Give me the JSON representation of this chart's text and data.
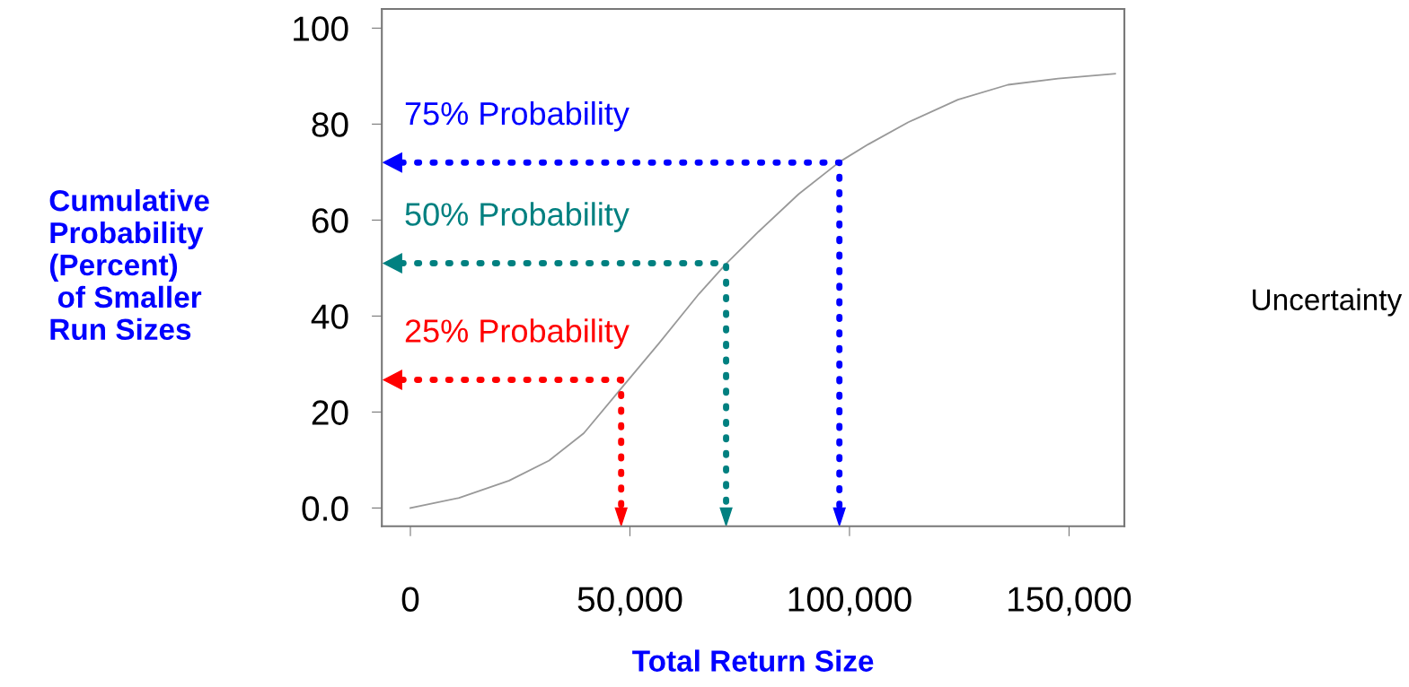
{
  "chart_data": {
    "type": "line",
    "xlabel": "Total Return Size",
    "ylabel": "Cumulative\nProbability\n(Percent)\n of Smaller\nRun Sizes",
    "x": [
      0,
      11100,
      22500,
      31600,
      39500,
      48000,
      56600,
      65700,
      71900,
      79300,
      88400,
      97700,
      104300,
      113400,
      124700,
      136100,
      147500,
      160500
    ],
    "series": [
      {
        "color": "#999999",
        "values": [
          0,
          2.1,
          5.7,
          9.9,
          15.6,
          24.9,
          34.3,
          44.6,
          50.9,
          57.6,
          65.4,
          72.1,
          75.8,
          80.4,
          85.1,
          88.2,
          89.5,
          90.5
        ]
      },
      {
        "color": "#0000ff",
        "line_style": "dotted",
        "x": [
          -2000,
          97700,
          97700
        ],
        "values": [
          72,
          72,
          0
        ]
      },
      {
        "color": "#008080",
        "line_style": "dotted",
        "x": [
          -2000,
          71900,
          71900
        ],
        "values": [
          51,
          51,
          0
        ]
      },
      {
        "color": "#ff0000",
        "line_style": "dotted",
        "x": [
          -2000,
          48000,
          48000
        ],
        "values": [
          26.7,
          26.7,
          0
        ]
      }
    ],
    "xlim": [
      -6500,
      162600
    ],
    "ylim": [
      -3.8,
      104
    ],
    "xticks": [
      {
        "value": 0,
        "label": "0"
      },
      {
        "value": 50000,
        "label": "50,000"
      },
      {
        "value": 100000,
        "label": "100,000"
      },
      {
        "value": 150000,
        "label": "150,000"
      }
    ],
    "yticks": [
      {
        "value": 0,
        "label": "0.0"
      },
      20,
      40,
      60,
      80,
      100
    ],
    "grid": false,
    "legend": false,
    "marker": "none",
    "line_style": "solid",
    "annotations": [
      "75% Probability",
      "50% Probability",
      "25% Probability",
      "Uncertainty"
    ]
  }
}
